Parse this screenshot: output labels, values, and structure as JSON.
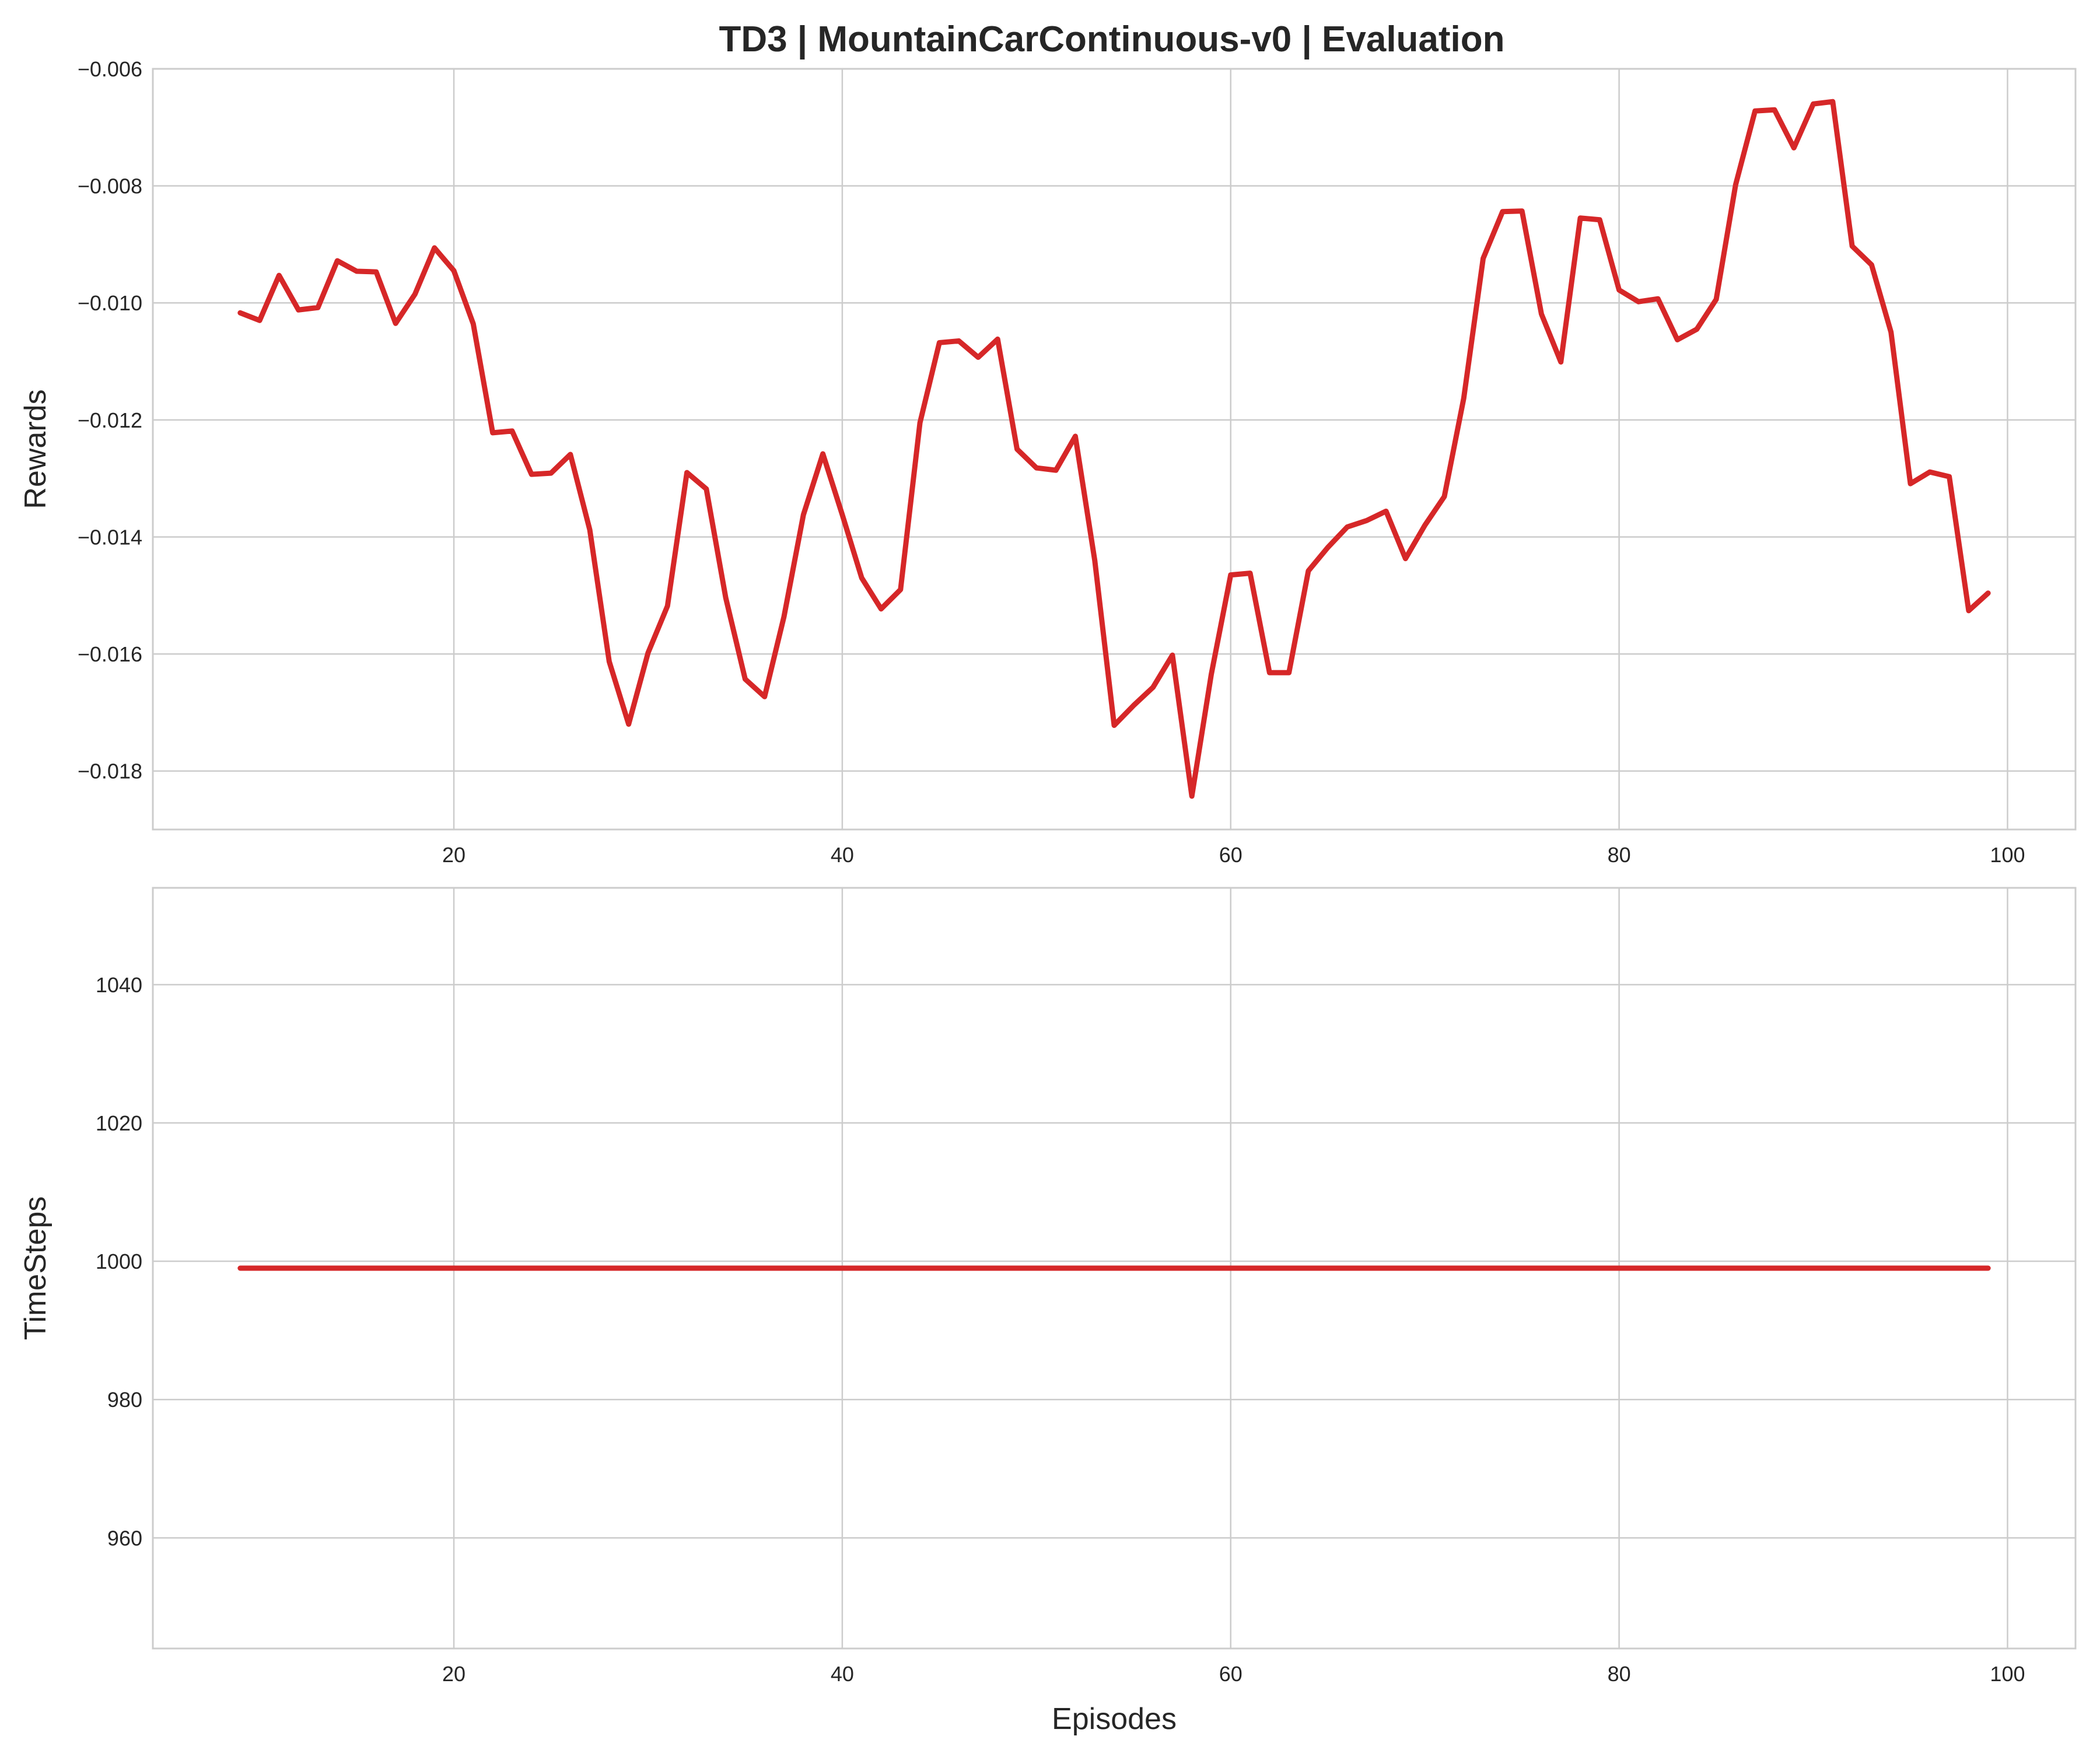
{
  "figure": {
    "title": "TD3 | MountainCarContinuous-v0 | Evaluation",
    "line_color": "#d62728"
  },
  "chart_data": [
    {
      "type": "line",
      "title": "TD3 | MountainCarContinuous-v0 | Evaluation",
      "xlabel": "",
      "ylabel": "Rewards",
      "xlim": [
        4.5,
        103.5
      ],
      "ylim": [
        -0.019,
        -0.006
      ],
      "xticks": [
        20,
        40,
        60,
        80,
        100
      ],
      "yticks": [
        -0.018,
        -0.016,
        -0.014,
        -0.012,
        -0.01,
        -0.008,
        -0.006
      ],
      "xtick_labels": [
        "20",
        "40",
        "60",
        "80",
        "100"
      ],
      "ytick_labels": [
        "−0.018",
        "−0.016",
        "−0.014",
        "−0.012",
        "−0.010",
        "−0.008",
        "−0.006"
      ],
      "grid": true,
      "series": [
        {
          "color": "#d62728",
          "x": [
            9,
            10,
            11,
            12,
            13,
            14,
            15,
            16,
            17,
            18,
            19,
            20,
            21,
            22,
            23,
            24,
            25,
            26,
            27,
            28,
            29,
            30,
            31,
            32,
            33,
            34,
            35,
            36,
            37,
            38,
            39,
            40,
            41,
            42,
            43,
            44,
            45,
            46,
            47,
            48,
            49,
            50,
            51,
            52,
            53,
            54,
            55,
            56,
            57,
            58,
            59,
            60,
            61,
            62,
            63,
            64,
            65,
            66,
            67,
            68,
            69,
            70,
            71,
            72,
            73,
            74,
            75,
            76,
            77,
            78,
            79,
            80,
            81,
            82,
            83,
            84,
            85,
            86,
            87,
            88,
            89,
            90,
            91,
            92,
            93,
            94,
            95,
            96,
            97,
            98,
            99
          ],
          "y": [
            -0.01017,
            -0.0103,
            -0.00953,
            -0.01012,
            -0.01008,
            -0.00928,
            -0.00946,
            -0.00947,
            -0.01035,
            -0.00985,
            -0.00906,
            -0.00945,
            -0.01036,
            -0.01222,
            -0.01219,
            -0.01293,
            -0.01291,
            -0.01259,
            -0.01388,
            -0.01613,
            -0.0172,
            -0.01598,
            -0.01518,
            -0.0129,
            -0.01318,
            -0.01504,
            -0.01643,
            -0.01673,
            -0.01536,
            -0.01362,
            -0.01258,
            -0.01362,
            -0.0147,
            -0.01523,
            -0.0149,
            -0.01205,
            -0.01068,
            -0.01065,
            -0.01093,
            -0.01062,
            -0.0125,
            -0.01282,
            -0.01286,
            -0.01228,
            -0.0144,
            -0.01722,
            -0.01688,
            -0.01657,
            -0.01602,
            -0.01843,
            -0.01635,
            -0.01465,
            -0.01462,
            -0.01632,
            -0.01632,
            -0.01458,
            -0.01418,
            -0.01383,
            -0.01372,
            -0.01356,
            -0.01437,
            -0.0138,
            -0.01331,
            -0.01163,
            -0.00924,
            -0.00844,
            -0.00843,
            -0.01019,
            -0.01101,
            -0.00855,
            -0.00858,
            -0.00978,
            -0.00998,
            -0.00993,
            -0.01063,
            -0.01045,
            -0.00994,
            -0.00798,
            -0.00672,
            -0.0067,
            -0.00735,
            -0.0066,
            -0.00656,
            -0.00903,
            -0.00935,
            -0.0105,
            -0.01309,
            -0.01289,
            -0.01297,
            -0.01526,
            -0.01496
          ]
        }
      ]
    },
    {
      "type": "line",
      "title": "",
      "xlabel": "Episodes",
      "ylabel": "TimeSteps",
      "xlim": [
        4.5,
        103.5
      ],
      "ylim": [
        944,
        1054
      ],
      "xticks": [
        20,
        40,
        60,
        80,
        100
      ],
      "yticks": [
        960,
        980,
        1000,
        1020,
        1040
      ],
      "xtick_labels": [
        "20",
        "40",
        "60",
        "80",
        "100"
      ],
      "ytick_labels": [
        "960",
        "980",
        "1000",
        "1020",
        "1040"
      ],
      "grid": true,
      "series": [
        {
          "color": "#d62728",
          "x": [
            9,
            99
          ],
          "y": [
            999,
            999
          ]
        }
      ]
    }
  ]
}
